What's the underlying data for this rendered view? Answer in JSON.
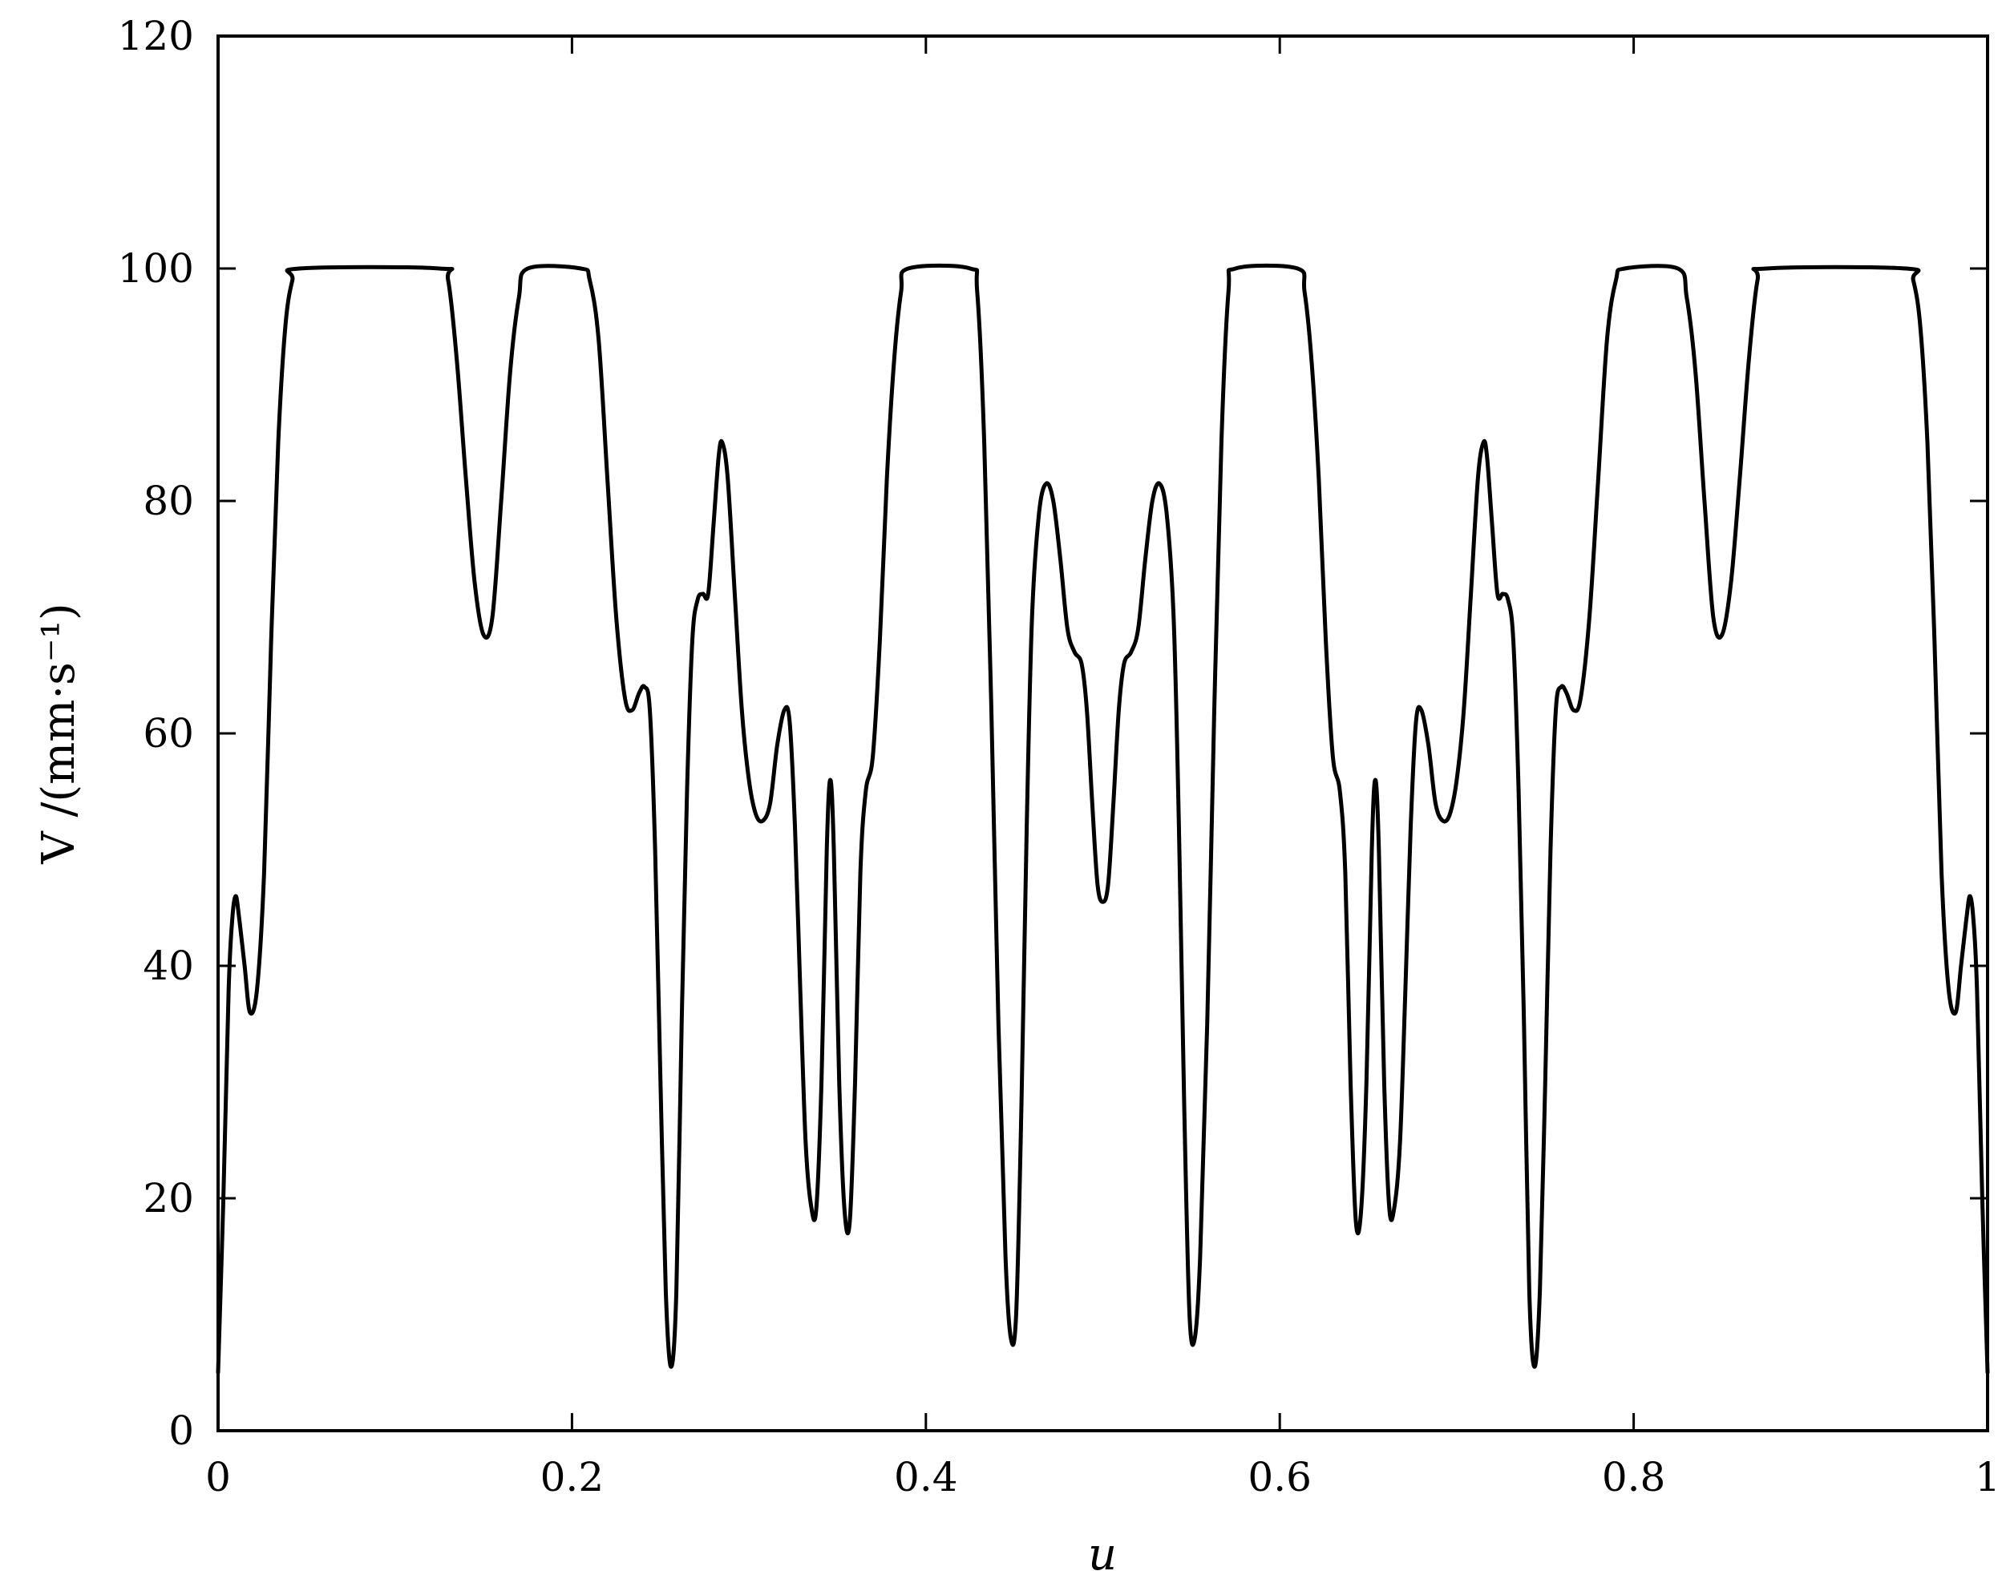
{
  "chart_data": {
    "type": "line",
    "title": "",
    "xlabel": "u",
    "ylabel": "V /(mm·s⁻¹)",
    "xlim": [
      0,
      1
    ],
    "ylim": [
      0,
      120
    ],
    "grid": false,
    "x_ticks": [
      {
        "value": 0,
        "label": "0"
      },
      {
        "value": 0.2,
        "label": "0.2"
      },
      {
        "value": 0.4,
        "label": "0.4"
      },
      {
        "value": 0.6,
        "label": "0.6"
      },
      {
        "value": 0.8,
        "label": "0.8"
      },
      {
        "value": 1,
        "label": "1"
      }
    ],
    "y_ticks": [
      {
        "value": 0,
        "label": "0"
      },
      {
        "value": 20,
        "label": "20"
      },
      {
        "value": 40,
        "label": "40"
      },
      {
        "value": 60,
        "label": "60"
      },
      {
        "value": 80,
        "label": "80"
      },
      {
        "value": 100,
        "label": "100"
      },
      {
        "value": 120,
        "label": "120"
      }
    ],
    "series": [
      {
        "color": "#000000",
        "points": [
          [
            0.0,
            5
          ],
          [
            0.003,
            20
          ],
          [
            0.006,
            38
          ],
          [
            0.008,
            44
          ],
          [
            0.01,
            46
          ],
          [
            0.012,
            44
          ],
          [
            0.015,
            40
          ],
          [
            0.018,
            36
          ],
          [
            0.022,
            38
          ],
          [
            0.026,
            48
          ],
          [
            0.03,
            68
          ],
          [
            0.034,
            85
          ],
          [
            0.038,
            95
          ],
          [
            0.042,
            99
          ],
          [
            0.046,
            100
          ],
          [
            0.125,
            100
          ],
          [
            0.13,
            99
          ],
          [
            0.135,
            92
          ],
          [
            0.14,
            82
          ],
          [
            0.145,
            73
          ],
          [
            0.15,
            68.5
          ],
          [
            0.155,
            70
          ],
          [
            0.16,
            80
          ],
          [
            0.165,
            91
          ],
          [
            0.17,
            97.5
          ],
          [
            0.175,
            100
          ],
          [
            0.205,
            100
          ],
          [
            0.21,
            99
          ],
          [
            0.215,
            94
          ],
          [
            0.22,
            82
          ],
          [
            0.225,
            70
          ],
          [
            0.23,
            63
          ],
          [
            0.234,
            62
          ],
          [
            0.238,
            63.5
          ],
          [
            0.241,
            64
          ],
          [
            0.244,
            62
          ],
          [
            0.247,
            50
          ],
          [
            0.25,
            30
          ],
          [
            0.253,
            12
          ],
          [
            0.256,
            5.5
          ],
          [
            0.259,
            12
          ],
          [
            0.262,
            35
          ],
          [
            0.265,
            55
          ],
          [
            0.268,
            68
          ],
          [
            0.271,
            71.5
          ],
          [
            0.274,
            72
          ],
          [
            0.277,
            72
          ],
          [
            0.28,
            78
          ],
          [
            0.283,
            84
          ],
          [
            0.285,
            85
          ],
          [
            0.288,
            82
          ],
          [
            0.292,
            72
          ],
          [
            0.296,
            62
          ],
          [
            0.3,
            56
          ],
          [
            0.304,
            53
          ],
          [
            0.308,
            52.5
          ],
          [
            0.312,
            54
          ],
          [
            0.316,
            59
          ],
          [
            0.32,
            62
          ],
          [
            0.323,
            61
          ],
          [
            0.326,
            52
          ],
          [
            0.329,
            38
          ],
          [
            0.332,
            25
          ],
          [
            0.335,
            19.5
          ],
          [
            0.338,
            19
          ],
          [
            0.341,
            30
          ],
          [
            0.344,
            50
          ],
          [
            0.346,
            56
          ],
          [
            0.348,
            50
          ],
          [
            0.351,
            30
          ],
          [
            0.354,
            19
          ],
          [
            0.357,
            18
          ],
          [
            0.36,
            30
          ],
          [
            0.363,
            48
          ],
          [
            0.366,
            55
          ],
          [
            0.37,
            58
          ],
          [
            0.374,
            68
          ],
          [
            0.378,
            82
          ],
          [
            0.382,
            92
          ],
          [
            0.386,
            98
          ],
          [
            0.39,
            100
          ],
          [
            0.425,
            100
          ],
          [
            0.429,
            98
          ],
          [
            0.433,
            85
          ],
          [
            0.437,
            62
          ],
          [
            0.441,
            35
          ],
          [
            0.445,
            15
          ],
          [
            0.448,
            8
          ],
          [
            0.451,
            10
          ],
          [
            0.454,
            28
          ],
          [
            0.457,
            52
          ],
          [
            0.46,
            70
          ],
          [
            0.464,
            79
          ],
          [
            0.468,
            81.5
          ],
          [
            0.472,
            80
          ],
          [
            0.476,
            75
          ],
          [
            0.48,
            69
          ],
          [
            0.484,
            67
          ],
          [
            0.488,
            66
          ],
          [
            0.491,
            62
          ],
          [
            0.494,
            54
          ],
          [
            0.497,
            47
          ],
          [
            0.5,
            45.5
          ],
          [
            0.503,
            47
          ],
          [
            0.506,
            54
          ],
          [
            0.509,
            62
          ],
          [
            0.512,
            66
          ],
          [
            0.516,
            67
          ],
          [
            0.52,
            69
          ],
          [
            0.524,
            75
          ],
          [
            0.528,
            80
          ],
          [
            0.532,
            81.5
          ],
          [
            0.536,
            79
          ],
          [
            0.54,
            70
          ],
          [
            0.543,
            52
          ],
          [
            0.546,
            28
          ],
          [
            0.549,
            10
          ],
          [
            0.552,
            8
          ],
          [
            0.555,
            15
          ],
          [
            0.559,
            35
          ],
          [
            0.563,
            62
          ],
          [
            0.567,
            85
          ],
          [
            0.571,
            98
          ],
          [
            0.575,
            100
          ],
          [
            0.61,
            100
          ],
          [
            0.614,
            98
          ],
          [
            0.618,
            92
          ],
          [
            0.622,
            82
          ],
          [
            0.626,
            68
          ],
          [
            0.63,
            58
          ],
          [
            0.634,
            55
          ],
          [
            0.637,
            48
          ],
          [
            0.64,
            30
          ],
          [
            0.643,
            18
          ],
          [
            0.646,
            19
          ],
          [
            0.649,
            30
          ],
          [
            0.652,
            50
          ],
          [
            0.654,
            56
          ],
          [
            0.656,
            50
          ],
          [
            0.659,
            30
          ],
          [
            0.662,
            19
          ],
          [
            0.665,
            19.5
          ],
          [
            0.668,
            25
          ],
          [
            0.671,
            38
          ],
          [
            0.674,
            52
          ],
          [
            0.677,
            61
          ],
          [
            0.68,
            62
          ],
          [
            0.684,
            59
          ],
          [
            0.688,
            54
          ],
          [
            0.692,
            52.5
          ],
          [
            0.696,
            53
          ],
          [
            0.7,
            56
          ],
          [
            0.704,
            62
          ],
          [
            0.708,
            72
          ],
          [
            0.712,
            82
          ],
          [
            0.715,
            85
          ],
          [
            0.717,
            84
          ],
          [
            0.72,
            78
          ],
          [
            0.723,
            72
          ],
          [
            0.726,
            72
          ],
          [
            0.729,
            71.5
          ],
          [
            0.732,
            68
          ],
          [
            0.735,
            55
          ],
          [
            0.738,
            35
          ],
          [
            0.741,
            12
          ],
          [
            0.744,
            5.5
          ],
          [
            0.747,
            12
          ],
          [
            0.75,
            30
          ],
          [
            0.753,
            50
          ],
          [
            0.756,
            62
          ],
          [
            0.759,
            64
          ],
          [
            0.762,
            63.5
          ],
          [
            0.766,
            62
          ],
          [
            0.77,
            63
          ],
          [
            0.775,
            70
          ],
          [
            0.78,
            82
          ],
          [
            0.785,
            94
          ],
          [
            0.79,
            99
          ],
          [
            0.795,
            100
          ],
          [
            0.825,
            100
          ],
          [
            0.83,
            97.5
          ],
          [
            0.835,
            91
          ],
          [
            0.84,
            80
          ],
          [
            0.845,
            70
          ],
          [
            0.85,
            68.5
          ],
          [
            0.855,
            73
          ],
          [
            0.86,
            82
          ],
          [
            0.865,
            92
          ],
          [
            0.87,
            99
          ],
          [
            0.875,
            100
          ],
          [
            0.954,
            100
          ],
          [
            0.958,
            99
          ],
          [
            0.962,
            95
          ],
          [
            0.966,
            85
          ],
          [
            0.97,
            68
          ],
          [
            0.974,
            48
          ],
          [
            0.978,
            38
          ],
          [
            0.982,
            36
          ],
          [
            0.985,
            40
          ],
          [
            0.988,
            44
          ],
          [
            0.99,
            46
          ],
          [
            0.992,
            44
          ],
          [
            0.994,
            38
          ],
          [
            0.997,
            20
          ],
          [
            1.0,
            5
          ]
        ]
      }
    ]
  }
}
